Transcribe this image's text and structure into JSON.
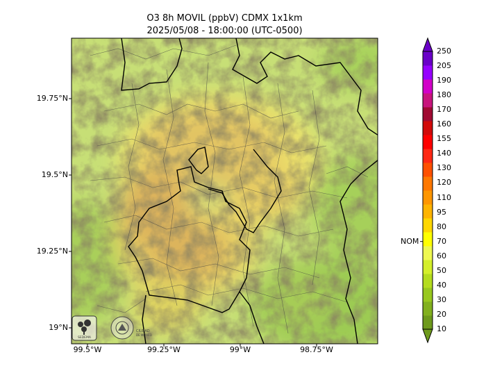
{
  "title": "O3 8h MOVIL (ppbV) CDMX 1x1km",
  "subtitle": "2025/05/08 - 18:00:00 (UTC-0500)",
  "y_ticks": [
    "19.75°N",
    "19.5°N",
    "19.25°N",
    "19°N"
  ],
  "x_ticks": [
    "99.5°W",
    "99.25°W",
    "99°W",
    "98.75°W"
  ],
  "colorbar": {
    "labels": [
      "10",
      "20",
      "30",
      "40",
      "50",
      "60",
      "70",
      "80",
      "95",
      "110",
      "120",
      "130",
      "140",
      "155",
      "160",
      "170",
      "180",
      "190",
      "205",
      "250"
    ],
    "colors": [
      "#6e9a1c",
      "#82b01e",
      "#98c81e",
      "#b4dc1e",
      "#d4ef2a",
      "#eef850",
      "#ffff00",
      "#ffd700",
      "#ffb400",
      "#ff9600",
      "#ff7800",
      "#ff5000",
      "#ff2814",
      "#ff0000",
      "#d20a0a",
      "#a00a32",
      "#c8147d",
      "#d200c8",
      "#9600ff",
      "#6a00c8"
    ],
    "marker_label": "NOM",
    "marker_value": 70
  },
  "logos": [
    "sedema-logo",
    "cdmx-seal"
  ],
  "logo_text": [
    "SEDEMA",
    "CIUDAD DE MÉXICO"
  ]
}
